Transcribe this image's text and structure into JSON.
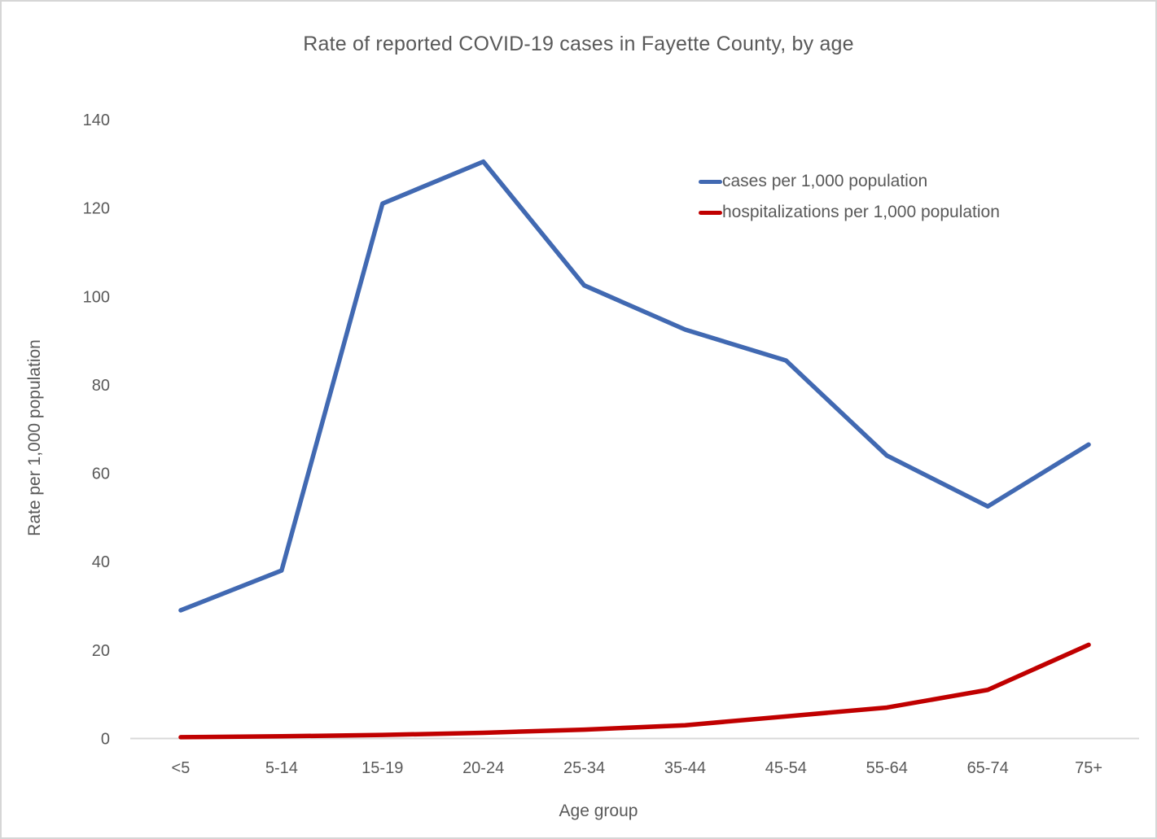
{
  "chart_data": {
    "type": "line",
    "title": "Rate of reported COVID-19 cases in Fayette County, by age",
    "xlabel": "Age group",
    "ylabel": "Rate per 1,000 population",
    "categories": [
      "<5",
      "5-14",
      "15-19",
      "20-24",
      "25-34",
      "35-44",
      "45-54",
      "55-64",
      "65-74",
      "75+"
    ],
    "series": [
      {
        "key": "cases",
        "name": "cases per 1,000 population",
        "color": "#4169b2",
        "values": [
          29,
          38,
          121,
          130.5,
          102.5,
          92.5,
          85.5,
          64,
          52.5,
          66.5
        ]
      },
      {
        "key": "hospitalizations",
        "name": "hospitalizations per 1,000 population",
        "color": "#c00000",
        "values": [
          0.3,
          0.5,
          0.8,
          1.3,
          2,
          3,
          5,
          7,
          11,
          21.2
        ]
      }
    ],
    "ylim": [
      0,
      140
    ],
    "yticks": [
      0,
      20,
      40,
      60,
      80,
      100,
      120,
      140
    ],
    "grid": false,
    "legend_position": "upper-right-inside",
    "axis_line_color": "#d9d9d9",
    "text_color": "#595959"
  }
}
